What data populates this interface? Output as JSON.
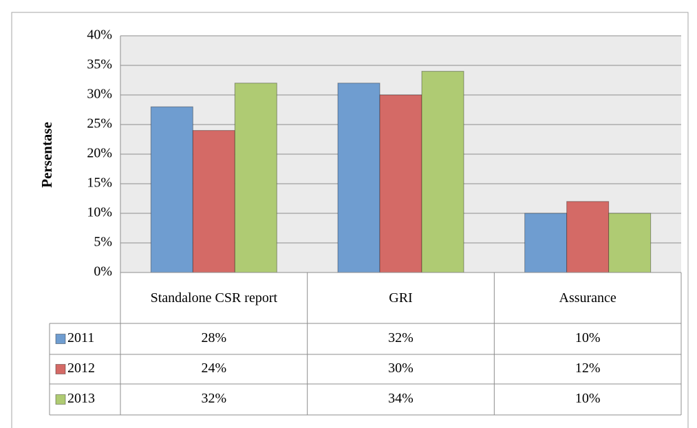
{
  "chart_data": {
    "type": "bar",
    "y_axis_label": "Persentase",
    "categories": [
      "Standalone CSR report",
      "GRI",
      "Assurance"
    ],
    "series": [
      {
        "name": "2011",
        "color": "#6f9dd0",
        "values": [
          28,
          32,
          10
        ],
        "value_labels": [
          "28%",
          "32%",
          "10%"
        ]
      },
      {
        "name": "2012",
        "color": "#d46a66",
        "values": [
          24,
          30,
          12
        ],
        "value_labels": [
          "24%",
          "30%",
          "12%"
        ]
      },
      {
        "name": "2013",
        "color": "#afcb73",
        "values": [
          32,
          34,
          10
        ],
        "value_labels": [
          "32%",
          "34%",
          "10%"
        ]
      }
    ],
    "ylim": [
      0,
      40
    ],
    "yticks": [
      {
        "value": 0,
        "label": "0%"
      },
      {
        "value": 5,
        "label": "5%"
      },
      {
        "value": 10,
        "label": "10%"
      },
      {
        "value": 15,
        "label": "15%"
      },
      {
        "value": 20,
        "label": "20%"
      },
      {
        "value": 25,
        "label": "25%"
      },
      {
        "value": 30,
        "label": "30%"
      },
      {
        "value": 35,
        "label": "35%"
      },
      {
        "value": 40,
        "label": "40%"
      }
    ],
    "grid": true,
    "data_table": true
  }
}
